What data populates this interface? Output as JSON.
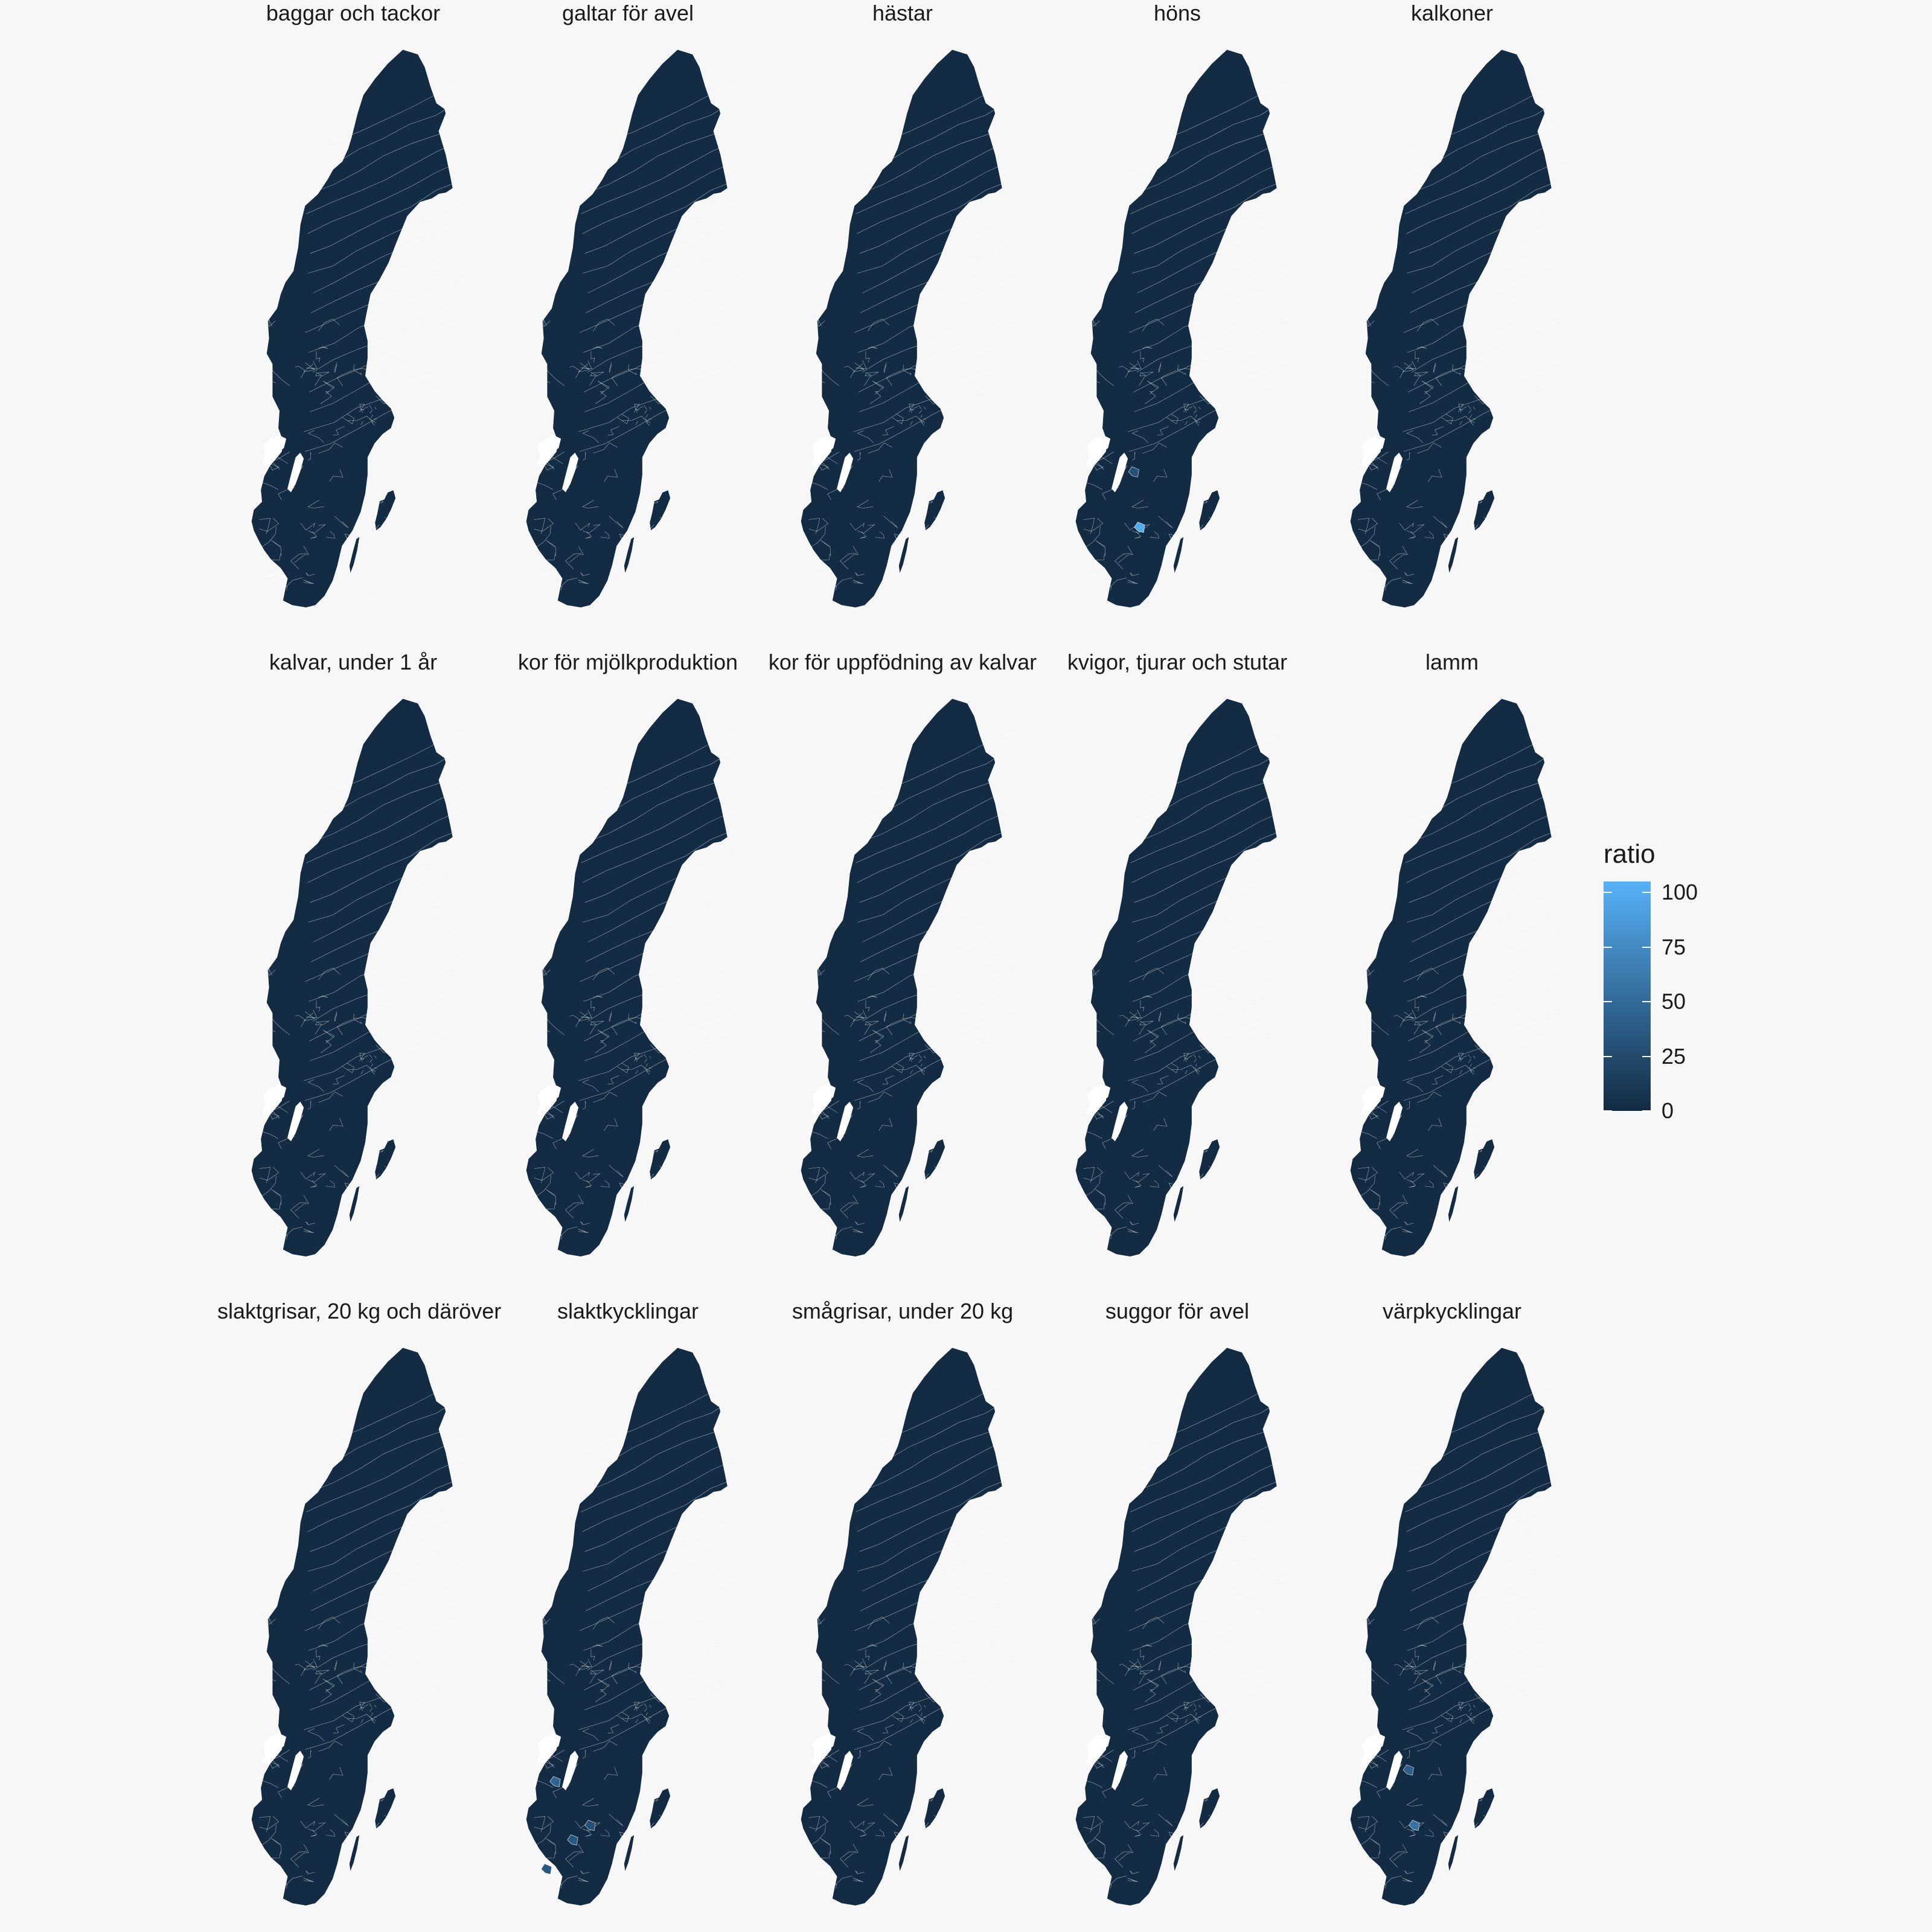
{
  "colors": {
    "background": "#f7f7f7",
    "low": "#132b43",
    "high": "#56b1f7",
    "border": "#ffffff",
    "missing": "#ffffff"
  },
  "legend": {
    "title": "ratio",
    "breaks": [
      0,
      25,
      50,
      75,
      100
    ],
    "labels": [
      "0",
      "25",
      "50",
      "75",
      "100"
    ],
    "range": [
      0,
      105
    ]
  },
  "chart_data": {
    "type": "choropleth",
    "region": "Sweden",
    "fill_variable": "ratio",
    "color_scale": {
      "low": "#132b43",
      "high": "#56b1f7",
      "domain": [
        0,
        105
      ]
    },
    "baseline_ratio": 0,
    "missing_regions": [
      "Vänern (lake)",
      "Vättern (lake)"
    ],
    "panels": [
      {
        "title": "baggar och tackor",
        "highlights": []
      },
      {
        "title": "galtar för avel",
        "highlights": []
      },
      {
        "title": "hästar",
        "highlights": []
      },
      {
        "title": "höns",
        "highlights": [
          {
            "area": "southeast coast",
            "ratio": 100
          },
          {
            "area": "east of Vättern",
            "ratio": 30
          }
        ]
      },
      {
        "title": "kalkoner",
        "highlights": []
      },
      {
        "title": "kalvar, under 1 år",
        "highlights": []
      },
      {
        "title": "kor för mjölkproduktion",
        "highlights": []
      },
      {
        "title": "kor för uppfödning av kalvar",
        "highlights": []
      },
      {
        "title": "kvigor, tjurar och stutar",
        "highlights": []
      },
      {
        "title": "lamm",
        "highlights": []
      },
      {
        "title": "slaktgrisar, 20 kg och däröver",
        "highlights": []
      },
      {
        "title": "slaktkycklingar",
        "highlights": [
          {
            "area": "west of Vättern",
            "ratio": 45
          },
          {
            "area": "southern inland",
            "ratio": 35
          },
          {
            "area": "southeast coast",
            "ratio": 30
          },
          {
            "area": "far south",
            "ratio": 35
          }
        ]
      },
      {
        "title": "smågrisar, under 20 kg",
        "highlights": []
      },
      {
        "title": "suggor för avel",
        "highlights": []
      },
      {
        "title": "värpkycklingar",
        "highlights": [
          {
            "area": "east of Vättern",
            "ratio": 40
          },
          {
            "area": "southeast coast",
            "ratio": 55
          }
        ]
      }
    ]
  }
}
